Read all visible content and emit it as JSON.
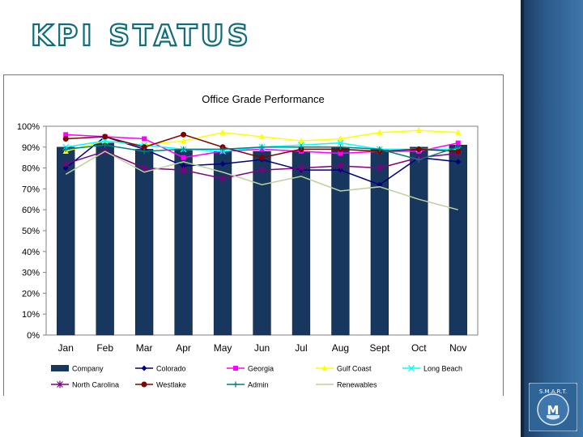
{
  "slide": {
    "title": "KPI STATUS",
    "logo_text": "S.M.A.R.T."
  },
  "colors": {
    "sidebar": "#2b5a8a",
    "title_fill": "#ffffff",
    "title_stroke": "#0f6e7a",
    "bar": "#17375e"
  },
  "chart_data": {
    "type": "bar",
    "title": "Office Grade Performance",
    "xlabel": "",
    "ylabel": "",
    "ylim": [
      0,
      100
    ],
    "y_ticks": [
      "0%",
      "10%",
      "20%",
      "30%",
      "40%",
      "50%",
      "60%",
      "70%",
      "80%",
      "90%",
      "100%"
    ],
    "grid": false,
    "legend_position": "bottom",
    "categories": [
      "Jan",
      "Feb",
      "Mar",
      "Apr",
      "May",
      "Jun",
      "Jul",
      "Aug",
      "Sept",
      "Oct",
      "Nov"
    ],
    "series": [
      {
        "name": "Company",
        "kind": "bar",
        "color": "#17375e",
        "marker": "bar",
        "values": [
          90,
          92,
          89,
          89,
          88,
          88,
          88,
          90,
          89,
          90,
          91
        ]
      },
      {
        "name": "Colorado",
        "kind": "line",
        "color": "#000080",
        "marker": "diamond",
        "values": [
          80,
          95,
          89,
          81,
          82,
          84,
          79,
          79,
          72,
          85,
          83
        ]
      },
      {
        "name": "Georgia",
        "kind": "line",
        "color": "#ff00ff",
        "marker": "square",
        "values": [
          96,
          95,
          94,
          85,
          88,
          89,
          88,
          87,
          88,
          88,
          92
        ]
      },
      {
        "name": "Gulf Coast",
        "kind": "line",
        "color": "#ffff00",
        "marker": "triangle",
        "values": [
          88,
          93,
          91,
          93,
          97,
          95,
          93,
          94,
          97,
          98,
          97
        ]
      },
      {
        "name": "Long Beach",
        "kind": "line",
        "color": "#00ffff",
        "marker": "x",
        "values": [
          90,
          93,
          91,
          89,
          88,
          90,
          91,
          92,
          89,
          89,
          89
        ]
      },
      {
        "name": "North Carolina",
        "kind": "line",
        "color": "#800080",
        "marker": "star",
        "values": [
          82,
          88,
          80,
          79,
          75,
          79,
          80,
          81,
          80,
          85,
          87
        ]
      },
      {
        "name": "Westlake",
        "kind": "line",
        "color": "#800000",
        "marker": "circle",
        "values": [
          94,
          95,
          90,
          96,
          90,
          85,
          89,
          89,
          88,
          89,
          88
        ]
      },
      {
        "name": "Admin",
        "kind": "line",
        "color": "#008080",
        "marker": "plus",
        "values": [
          89,
          91,
          88,
          89,
          89,
          90,
          90,
          90,
          89,
          84,
          90
        ]
      },
      {
        "name": "Renewables",
        "kind": "line",
        "color": "#bcd19c",
        "marker": "none",
        "values": [
          77,
          88,
          78,
          83,
          78,
          72,
          76,
          69,
          71,
          65,
          60
        ]
      }
    ]
  }
}
